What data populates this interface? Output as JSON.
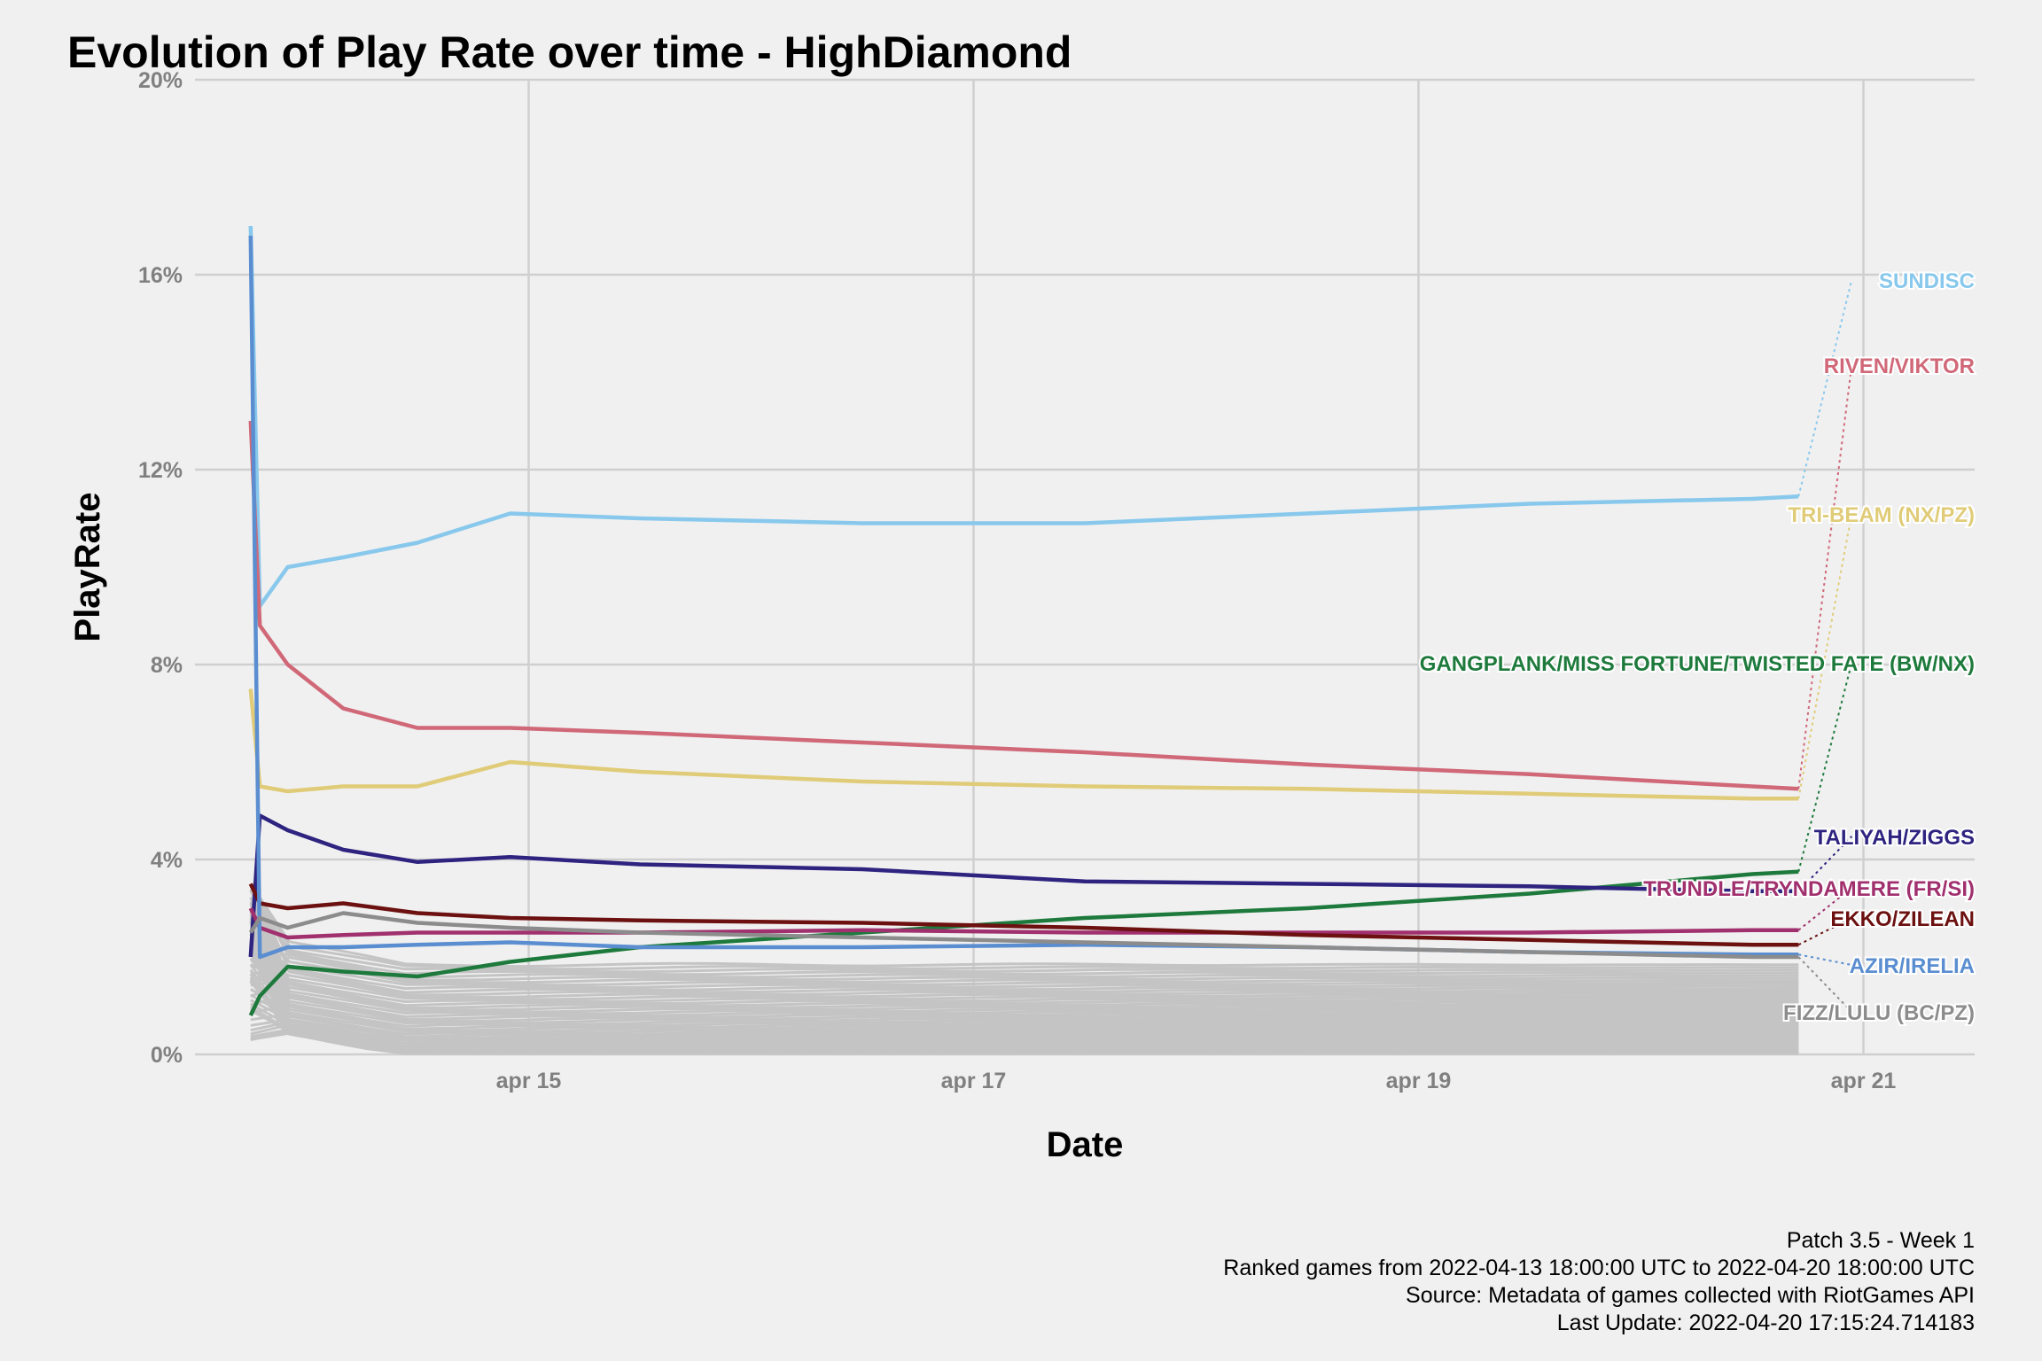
{
  "chart_data": {
    "type": "line",
    "title": "Evolution of Play Rate over time - HighDiamond",
    "xlabel": "Date",
    "ylabel": "PlayRate",
    "x_ticks": [
      {
        "date": "2022-04-15",
        "label": "apr 15"
      },
      {
        "date": "2022-04-17",
        "label": "apr 17"
      },
      {
        "date": "2022-04-19",
        "label": "apr 19"
      },
      {
        "date": "2022-04-21",
        "label": "apr 21"
      }
    ],
    "y_ticks": [
      {
        "value": 0,
        "label": "0%"
      },
      {
        "value": 4,
        "label": "4%"
      },
      {
        "value": 8,
        "label": "8%"
      },
      {
        "value": 12,
        "label": "12%"
      },
      {
        "value": 16,
        "label": "16%"
      },
      {
        "value": 20,
        "label": "20%"
      }
    ],
    "xlim": [
      "2022-04-13 12:00",
      "2022-04-21 12:00"
    ],
    "ylim": [
      0,
      20
    ],
    "grid": true,
    "legend": "direct labels at right",
    "series": [
      {
        "name": "SUNDISC",
        "color": "#88c8ec",
        "x": [
          "2022-04-13 18:00",
          "2022-04-13 19:00",
          "2022-04-13 22:00",
          "2022-04-14 04:00",
          "2022-04-14 12:00",
          "2022-04-14 22:00",
          "2022-04-15 12:00",
          "2022-04-16 12:00",
          "2022-04-17 12:00",
          "2022-04-18 12:00",
          "2022-04-19 12:00",
          "2022-04-20 12:00",
          "2022-04-20 17:00"
        ],
        "values": [
          17.0,
          9.2,
          10.0,
          10.2,
          10.5,
          11.1,
          11.0,
          10.9,
          10.9,
          11.1,
          11.3,
          11.4,
          11.45
        ]
      },
      {
        "name": "RIVEN/VIKTOR",
        "color": "#d06878",
        "x": [
          "2022-04-13 18:00",
          "2022-04-13 19:00",
          "2022-04-13 22:00",
          "2022-04-14 04:00",
          "2022-04-14 12:00",
          "2022-04-14 22:00",
          "2022-04-15 12:00",
          "2022-04-16 12:00",
          "2022-04-17 12:00",
          "2022-04-18 12:00",
          "2022-04-19 12:00",
          "2022-04-20 12:00",
          "2022-04-20 17:00"
        ],
        "values": [
          13.0,
          8.8,
          8.0,
          7.1,
          6.7,
          6.7,
          6.6,
          6.4,
          6.2,
          5.95,
          5.75,
          5.5,
          5.45
        ]
      },
      {
        "name": "TRI-BEAM (NX/PZ)",
        "color": "#e0cc78",
        "x": [
          "2022-04-13 18:00",
          "2022-04-13 19:00",
          "2022-04-13 22:00",
          "2022-04-14 04:00",
          "2022-04-14 12:00",
          "2022-04-14 22:00",
          "2022-04-15 12:00",
          "2022-04-16 12:00",
          "2022-04-17 12:00",
          "2022-04-18 12:00",
          "2022-04-19 12:00",
          "2022-04-20 12:00",
          "2022-04-20 17:00"
        ],
        "values": [
          7.5,
          5.5,
          5.4,
          5.5,
          5.5,
          6.0,
          5.8,
          5.6,
          5.5,
          5.45,
          5.35,
          5.25,
          5.25
        ]
      },
      {
        "name": "GANGPLANK/MISS FORTUNE/TWISTED FATE (BW/NX)",
        "color": "#1e7a3c",
        "x": [
          "2022-04-13 18:00",
          "2022-04-13 19:00",
          "2022-04-13 22:00",
          "2022-04-14 04:00",
          "2022-04-14 12:00",
          "2022-04-14 22:00",
          "2022-04-15 12:00",
          "2022-04-16 12:00",
          "2022-04-17 12:00",
          "2022-04-18 12:00",
          "2022-04-19 12:00",
          "2022-04-20 12:00",
          "2022-04-20 17:00"
        ],
        "values": [
          0.8,
          1.2,
          1.8,
          1.7,
          1.6,
          1.9,
          2.2,
          2.5,
          2.8,
          3.0,
          3.3,
          3.7,
          3.75
        ]
      },
      {
        "name": "TALIYAH/ZIGGS",
        "color": "#2e2480",
        "x": [
          "2022-04-13 18:00",
          "2022-04-13 19:00",
          "2022-04-13 22:00",
          "2022-04-14 04:00",
          "2022-04-14 12:00",
          "2022-04-14 22:00",
          "2022-04-15 12:00",
          "2022-04-16 12:00",
          "2022-04-17 12:00",
          "2022-04-18 12:00",
          "2022-04-19 12:00",
          "2022-04-20 12:00",
          "2022-04-20 17:00"
        ],
        "values": [
          2.0,
          4.9,
          4.6,
          4.2,
          3.95,
          4.05,
          3.9,
          3.8,
          3.55,
          3.5,
          3.45,
          3.35,
          3.35
        ]
      },
      {
        "name": "TRUNDLE/TRYNDAMERE (FR/SI)",
        "color": "#a0306e",
        "x": [
          "2022-04-13 18:00",
          "2022-04-13 19:00",
          "2022-04-13 22:00",
          "2022-04-14 04:00",
          "2022-04-14 12:00",
          "2022-04-14 22:00",
          "2022-04-15 12:00",
          "2022-04-16 12:00",
          "2022-04-17 12:00",
          "2022-04-18 12:00",
          "2022-04-19 12:00",
          "2022-04-20 12:00",
          "2022-04-20 17:00"
        ],
        "values": [
          3.0,
          2.6,
          2.4,
          2.45,
          2.5,
          2.5,
          2.5,
          2.55,
          2.5,
          2.5,
          2.5,
          2.55,
          2.55
        ]
      },
      {
        "name": "EKKO/ZILEAN",
        "color": "#6c1010",
        "x": [
          "2022-04-13 18:00",
          "2022-04-13 19:00",
          "2022-04-13 22:00",
          "2022-04-14 04:00",
          "2022-04-14 12:00",
          "2022-04-14 22:00",
          "2022-04-15 12:00",
          "2022-04-16 12:00",
          "2022-04-17 12:00",
          "2022-04-18 12:00",
          "2022-04-19 12:00",
          "2022-04-20 12:00",
          "2022-04-20 17:00"
        ],
        "values": [
          3.5,
          3.1,
          3.0,
          3.1,
          2.9,
          2.8,
          2.75,
          2.7,
          2.6,
          2.45,
          2.35,
          2.25,
          2.25
        ]
      },
      {
        "name": "AZIR/IRELIA",
        "color": "#5a8ed0",
        "x": [
          "2022-04-13 18:00",
          "2022-04-13 19:00",
          "2022-04-13 22:00",
          "2022-04-14 04:00",
          "2022-04-14 12:00",
          "2022-04-14 22:00",
          "2022-04-15 12:00",
          "2022-04-16 12:00",
          "2022-04-17 12:00",
          "2022-04-18 12:00",
          "2022-04-19 12:00",
          "2022-04-20 12:00",
          "2022-04-20 17:00"
        ],
        "values": [
          16.8,
          2.0,
          2.2,
          2.2,
          2.25,
          2.3,
          2.2,
          2.2,
          2.25,
          2.2,
          2.1,
          2.05,
          2.05
        ]
      },
      {
        "name": "FIZZ/LULU (BC/PZ)",
        "color": "#8c8c8c",
        "x": [
          "2022-04-13 18:00",
          "2022-04-13 19:00",
          "2022-04-13 22:00",
          "2022-04-14 04:00",
          "2022-04-14 12:00",
          "2022-04-14 22:00",
          "2022-04-15 12:00",
          "2022-04-16 12:00",
          "2022-04-17 12:00",
          "2022-04-18 12:00",
          "2022-04-19 12:00",
          "2022-04-20 12:00",
          "2022-04-20 17:00"
        ],
        "values": [
          2.5,
          2.8,
          2.6,
          2.9,
          2.7,
          2.6,
          2.5,
          2.4,
          2.3,
          2.2,
          2.1,
          2.0,
          2.0
        ]
      }
    ]
  },
  "caption": {
    "line1": "Patch 3.5 - Week 1",
    "line2": "Ranked games from 2022-04-13 18:00:00 UTC to 2022-04-20 18:00:00 UTC",
    "line3": "Source: Metadata of games collected with RiotGames API",
    "line4": "Last Update: 2022-04-20 17:15:24.714183"
  }
}
